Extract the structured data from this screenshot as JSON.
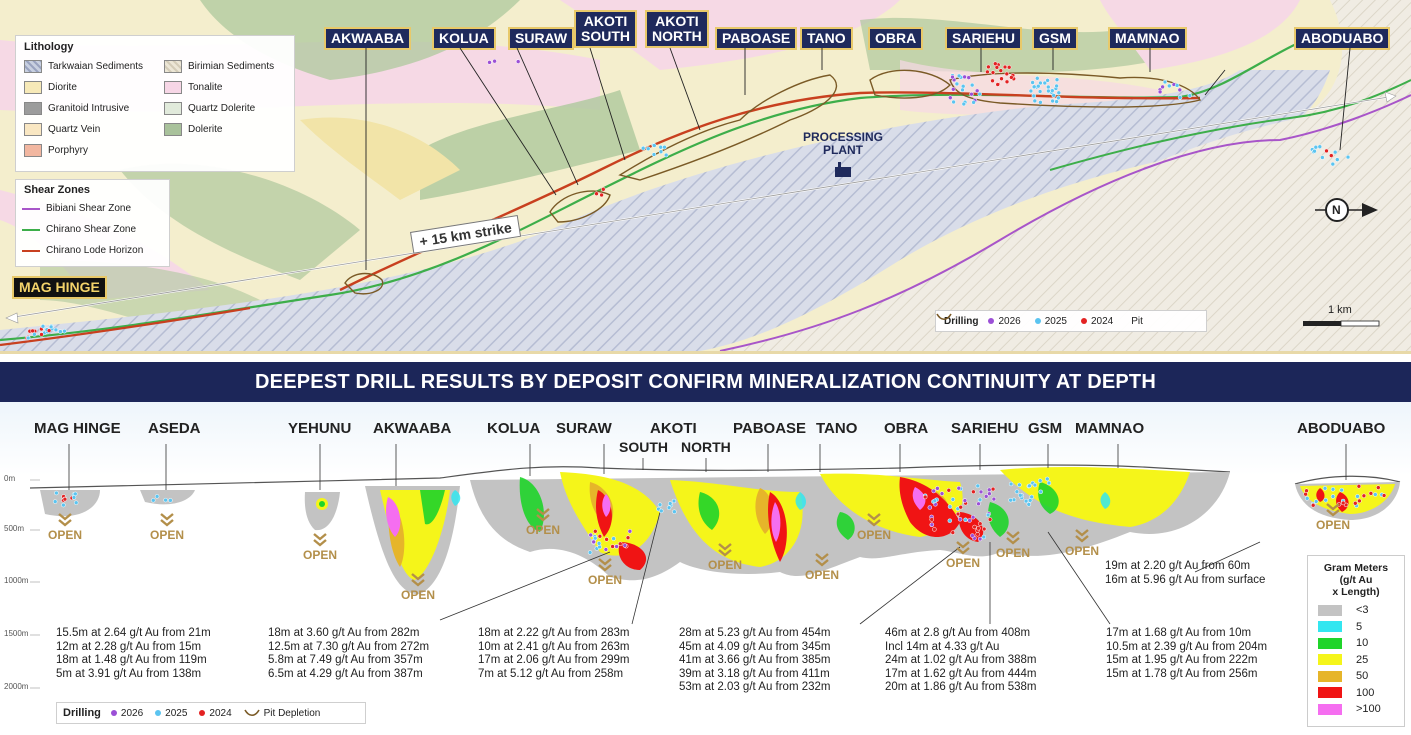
{
  "map": {
    "deposit_labels": [
      "AKWAABA",
      "KOLUA",
      "SURAW",
      "AKOTI\nSOUTH",
      "AKOTI\nNORTH",
      "PABOASE",
      "TANO",
      "OBRA",
      "SARIEHU",
      "GSM",
      "MAMNAO",
      "ABODUABO"
    ],
    "mag_hinge_label": "MAG HINGE",
    "processing_plant": "PROCESSING\nPLANT",
    "strike_label": "+ 15 km strike",
    "scale_label": "1 km",
    "north_label": "N",
    "lithology": {
      "title": "Lithology",
      "items": [
        {
          "label": "Tarkwaian Sediments",
          "color": "#c8cfe0"
        },
        {
          "label": "Birimian Sediments",
          "color": "#e6e0cf"
        },
        {
          "label": "Diorite",
          "color": "#f7e9b8"
        },
        {
          "label": "Tonalite",
          "color": "#f7d6e6"
        },
        {
          "label": "Granitoid Intrusive",
          "color": "#9c9c9c"
        },
        {
          "label": "Quartz Dolerite",
          "color": "#e1eadb"
        },
        {
          "label": "Quartz Vein",
          "color": "#f9e7c2"
        },
        {
          "label": "Dolerite",
          "color": "#a9c29b"
        },
        {
          "label": "Porphyry",
          "color": "#f2b7a0"
        }
      ]
    },
    "shear_zones": {
      "title": "Shear Zones",
      "items": [
        {
          "label": "Bibiani Shear Zone",
          "color": "#a855c9"
        },
        {
          "label": "Chirano Shear Zone",
          "color": "#3dae4a"
        },
        {
          "label": "Chirano Lode Horizon",
          "color": "#c8401f"
        }
      ]
    },
    "drilling_legend": {
      "title": "Drilling",
      "items": [
        {
          "label": "2026",
          "color": "#9b4fd6"
        },
        {
          "label": "2025",
          "color": "#5bc4f0"
        },
        {
          "label": "2024",
          "color": "#e32222"
        },
        {
          "label": "Pit",
          "color": "#7a5a26"
        }
      ]
    }
  },
  "section": {
    "banner": "DEEPEST DRILL RESULTS BY DEPOSIT CONFIRM MINERALIZATION CONTINUITY AT DEPTH",
    "names": [
      "MAG HINGE",
      "ASEDA",
      "YEHUNU",
      "AKWAABA",
      "KOLUA",
      "SURAW",
      "AKOTI",
      "SOUTH",
      "NORTH",
      "PABOASE",
      "TANO",
      "OBRA",
      "SARIEHU",
      "GSM",
      "MAMNAO",
      "ABODUABO"
    ],
    "open_label": "OPEN",
    "depth_ticks": [
      "0m",
      "500m",
      "1000m",
      "1500m",
      "2000m"
    ],
    "results": {
      "maghinge": [
        "15.5m at 2.64 g/t Au from 21m",
        "12m at 2.28 g/t Au from 15m",
        "18m at 1.48 g/t Au from 119m",
        "5m at 3.91 g/t Au from 138m"
      ],
      "akwaaba": [
        "18m at 3.60 g/t Au from 282m",
        "12.5m at 7.30 g/t Au from 272m",
        "5.8m at 7.49 g/t Au from 357m",
        "6.5m at 4.29 g/t Au from 387m"
      ],
      "suraw": [
        "18m at 2.22 g/t Au from 283m",
        "10m at 2.41 g/t Au from 263m",
        "17m at 2.06 g/t Au from 299m",
        "7m at 5.12 g/t Au from 258m"
      ],
      "paboase": [
        "28m at 5.23 g/t Au from 454m",
        "45m at 4.09 g/t Au from 345m",
        "41m at 3.66 g/t Au from 385m",
        "39m at 3.18 g/t Au from 411m",
        "53m at 2.03 g/t Au from 232m"
      ],
      "sariehu": [
        "46m at 2.8 g/t Au from 408m",
        "Incl 14m at 4.33 g/t Au",
        "24m at 1.02 g/t Au from 388m",
        "17m at 1.62 g/t Au from 444m",
        "20m at 1.86 g/t Au from 538m"
      ],
      "mamnao": [
        "17m at 1.68 g/t Au from 10m",
        "10.5m at 2.39 g/t Au from 204m",
        "15m at 1.95 g/t Au from 222m",
        "15m at 1.78 g/t Au from 256m"
      ],
      "aboduabo": [
        "19m at 2.20 g/t Au from 60m",
        "16m at 5.96 g/t Au from surface"
      ]
    },
    "drilling_legend": {
      "title": "Drilling",
      "items": [
        {
          "label": "2026",
          "color": "#9b4fd6"
        },
        {
          "label": "2025",
          "color": "#5bc4f0"
        },
        {
          "label": "2024",
          "color": "#e32222"
        },
        {
          "label": "Pit Depletion",
          "color": "#7a5a26"
        }
      ]
    },
    "gram_meters": {
      "title": "Gram Meters\n(g/t Au\nx Length)",
      "items": [
        {
          "label": "<3",
          "color": "#c3c3c3"
        },
        {
          "label": "5",
          "color": "#33e6f0"
        },
        {
          "label": "10",
          "color": "#1fd42a"
        },
        {
          "label": "25",
          "color": "#f5f51a"
        },
        {
          "label": "50",
          "color": "#e6b52a"
        },
        {
          "label": "100",
          "color": "#f01414"
        },
        {
          "label": ">100",
          "color": "#f56ef0"
        }
      ]
    }
  }
}
